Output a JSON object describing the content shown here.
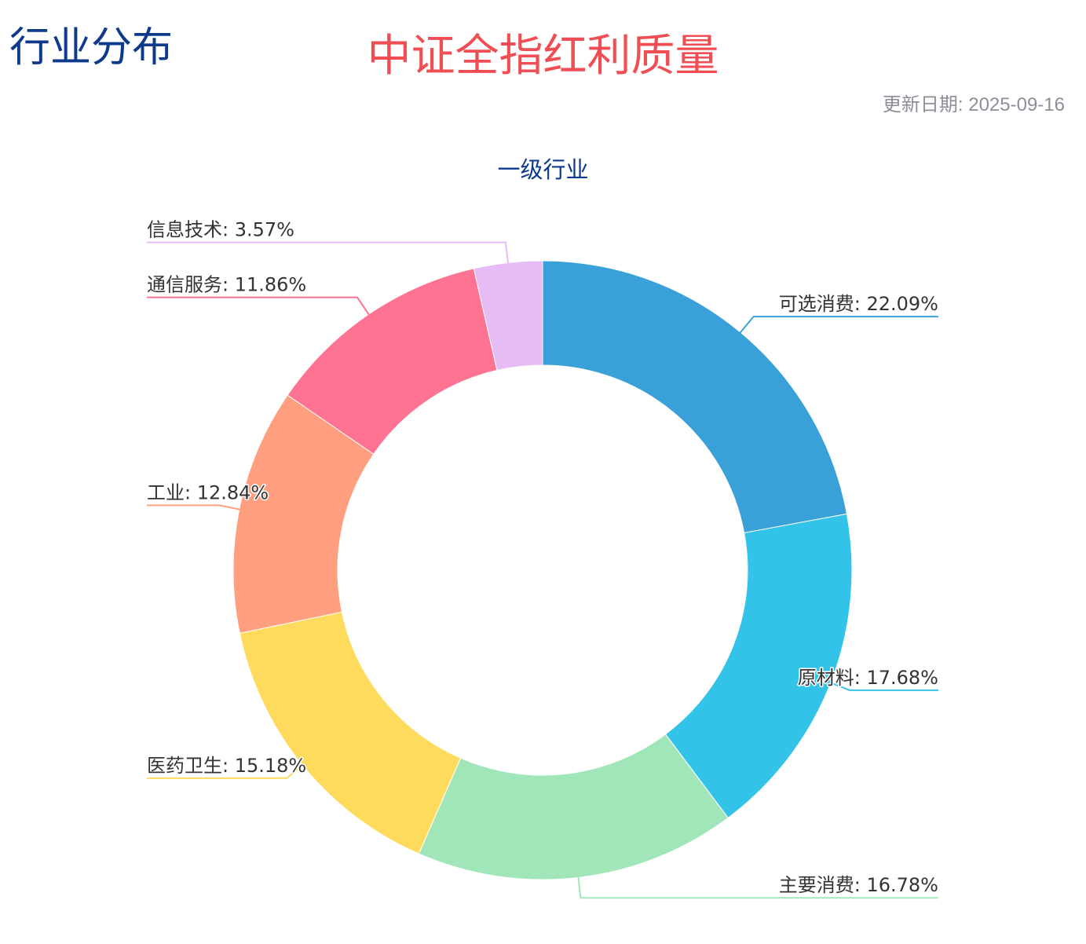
{
  "header": {
    "section_title": "行业分布",
    "title": "中证全指红利质量",
    "update_date": "更新日期: 2025-09-16"
  },
  "chart_data": {
    "type": "pie",
    "donut": true,
    "title": "一级行业",
    "start_angle_deg": 0,
    "direction": "clockwise",
    "slices": [
      {
        "name": "可选消费",
        "value": 22.09,
        "label": "可选消费: 22.09%",
        "color": "#3aa1d8"
      },
      {
        "name": "原材料",
        "value": 17.68,
        "label": "原材料: 17.68%",
        "color": "#34c3e8"
      },
      {
        "name": "主要消费",
        "value": 16.78,
        "label": "主要消费: 16.78%",
        "color": "#a1e6b9"
      },
      {
        "name": "医药卫生",
        "value": 15.18,
        "label": "医药卫生: 15.18%",
        "color": "#ffdb5d"
      },
      {
        "name": "工业",
        "value": 12.84,
        "label": "工业: 12.84%",
        "color": "#ff9f80"
      },
      {
        "name": "通信服务",
        "value": 11.86,
        "label": "通信服务: 11.86%",
        "color": "#fe7392"
      },
      {
        "name": "信息技术",
        "value": 3.57,
        "label": "信息技术: 3.57%",
        "color": "#e6bcf4"
      }
    ]
  }
}
